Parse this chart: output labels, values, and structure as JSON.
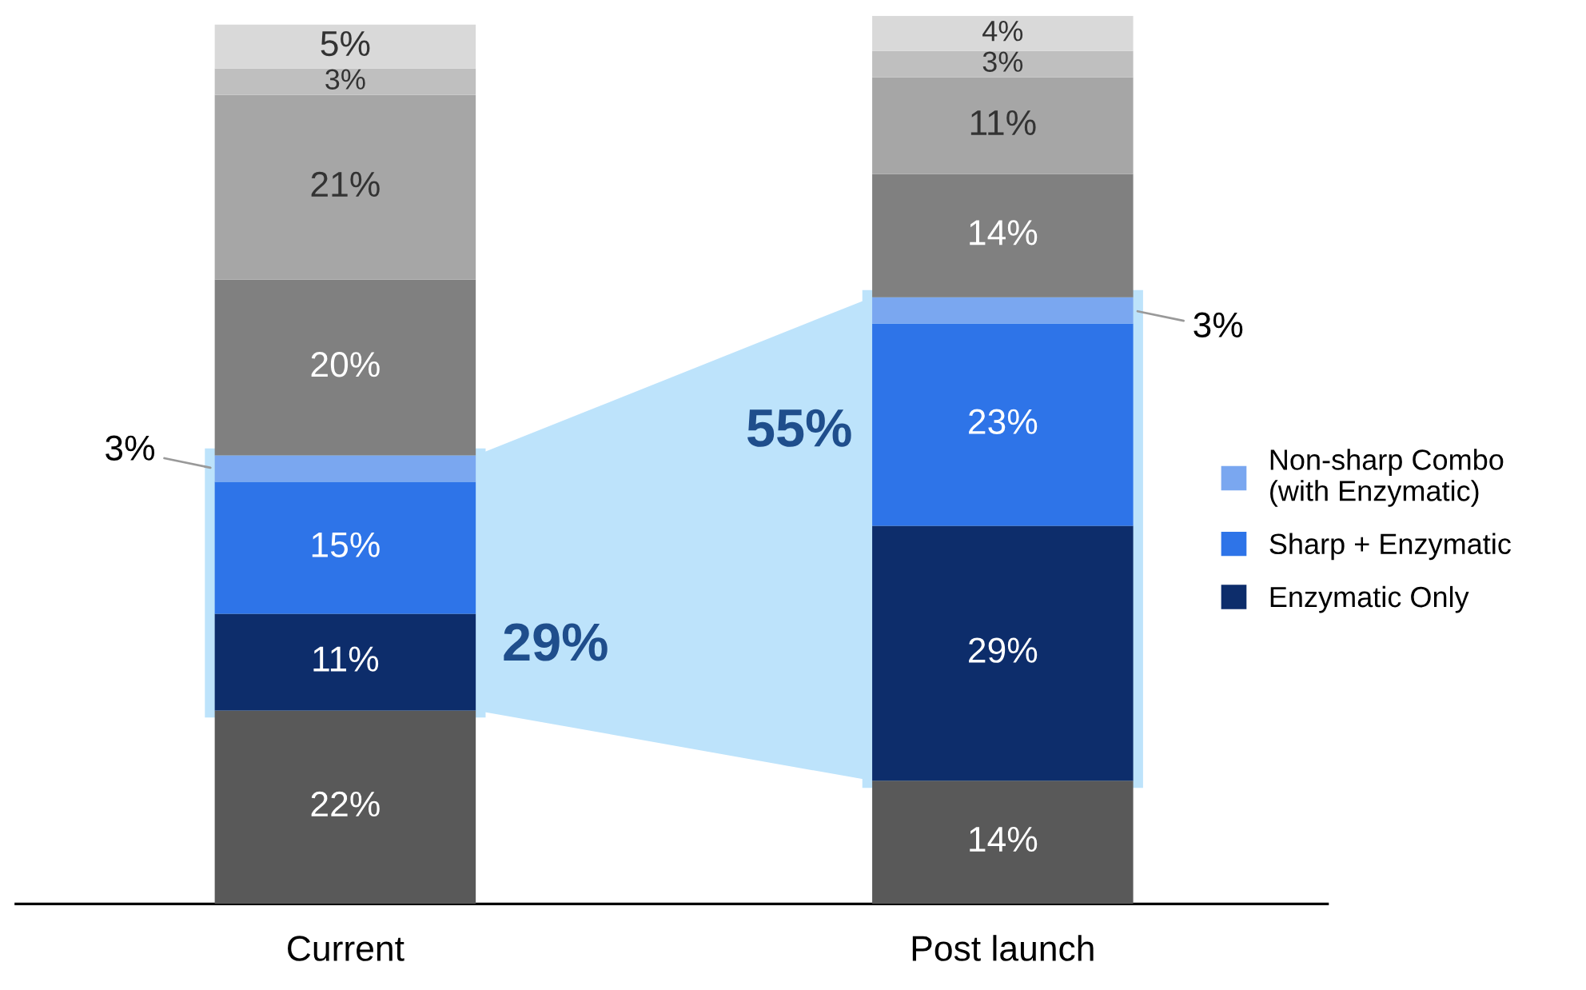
{
  "chart_data": {
    "type": "bar",
    "stacked": true,
    "categories": [
      "Current",
      "Post launch"
    ],
    "series": [
      {
        "color": "#595959",
        "values": [
          22,
          14
        ],
        "value_labels": [
          "22%",
          "14%"
        ]
      },
      {
        "name": "Enzymatic Only",
        "color": "#0d2d6b",
        "values": [
          11,
          29
        ],
        "value_labels": [
          "11%",
          "29%"
        ]
      },
      {
        "name": "Sharp + Enzymatic",
        "color": "#2e74e8",
        "values": [
          15,
          23
        ],
        "value_labels": [
          "15%",
          "23%"
        ]
      },
      {
        "name": "Non-sharp Combo\n(with Enzymatic)",
        "color": "#7aa7f0",
        "values": [
          3,
          3
        ],
        "value_labels": [
          "3%",
          "3%"
        ]
      },
      {
        "color": "#808080",
        "values": [
          20,
          14
        ],
        "value_labels": [
          "20%",
          "14%"
        ]
      },
      {
        "color": "#a6a6a6",
        "values": [
          21,
          11
        ],
        "value_labels": [
          "21%",
          "11%"
        ]
      },
      {
        "color": "#bfbfbf",
        "values": [
          3,
          3
        ],
        "value_labels": [
          "3%",
          "3%"
        ]
      },
      {
        "color": "#d9d9d9",
        "values": [
          5,
          4
        ],
        "value_labels": [
          "5%",
          "4%"
        ]
      }
    ],
    "legend": "right",
    "grid": false,
    "annotations": [
      "29%",
      "55%"
    ]
  }
}
